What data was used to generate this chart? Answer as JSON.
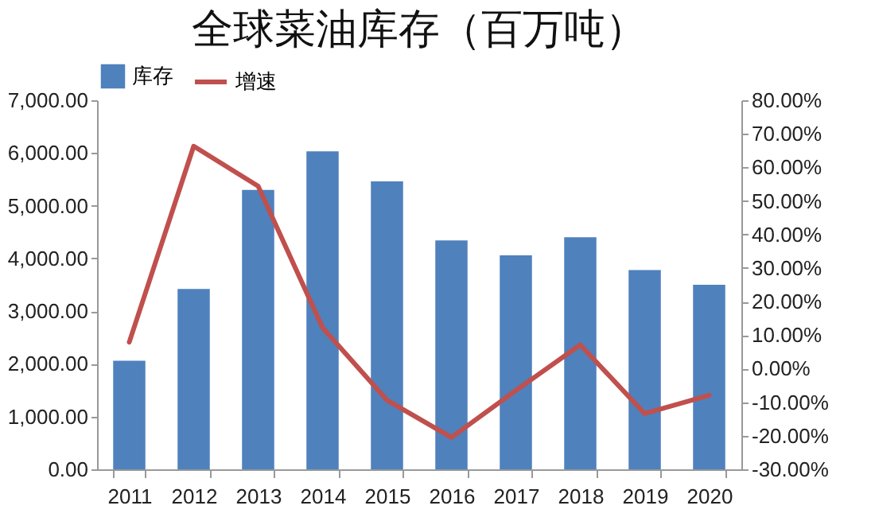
{
  "chart_data": {
    "type": "bar",
    "title": "全球菜油库存（百万吨）",
    "categories": [
      "2011",
      "2012",
      "2013",
      "2014",
      "2015",
      "2016",
      "2017",
      "2018",
      "2019",
      "2020"
    ],
    "series": [
      {
        "name": "库存",
        "color": "#4f81bd",
        "values": [
          2060,
          3420,
          5300,
          6030,
          5460,
          4340,
          4060,
          4400,
          3780,
          3500
        ]
      },
      {
        "name": "增速",
        "type": "line",
        "axis": "y2",
        "color": "#c0504d",
        "values": [
          7.9,
          66.3,
          54.4,
          12.2,
          -9.4,
          -20.5,
          -6.5,
          7.1,
          -13.4,
          -7.9
        ]
      }
    ],
    "ylim": [
      0,
      7000
    ],
    "yticks": [
      {
        "value": 0,
        "label": "0.00"
      },
      {
        "value": 1000,
        "label": "1,000.00"
      },
      {
        "value": 2000,
        "label": "2,000.00"
      },
      {
        "value": 3000,
        "label": "3,000.00"
      },
      {
        "value": 4000,
        "label": "4,000.00"
      },
      {
        "value": 5000,
        "label": "5,000.00"
      },
      {
        "value": 6000,
        "label": "6,000.00"
      },
      {
        "value": 7000,
        "label": "7,000.00"
      }
    ],
    "y2lim": [
      -30,
      80
    ],
    "y2ticks": [
      {
        "value": -30,
        "label": "-30.00%"
      },
      {
        "value": -20,
        "label": "-20.00%"
      },
      {
        "value": -10,
        "label": "-10.00%"
      },
      {
        "value": 0,
        "label": "0.00%"
      },
      {
        "value": 10,
        "label": "10.00%"
      },
      {
        "value": 20,
        "label": "20.00%"
      },
      {
        "value": 30,
        "label": "30.00%"
      },
      {
        "value": 40,
        "label": "40.00%"
      },
      {
        "value": 50,
        "label": "50.00%"
      },
      {
        "value": 60,
        "label": "60.00%"
      },
      {
        "value": 70,
        "label": "70.00%"
      },
      {
        "value": 80,
        "label": "80.00%"
      }
    ],
    "legend": "top",
    "grid": false
  }
}
